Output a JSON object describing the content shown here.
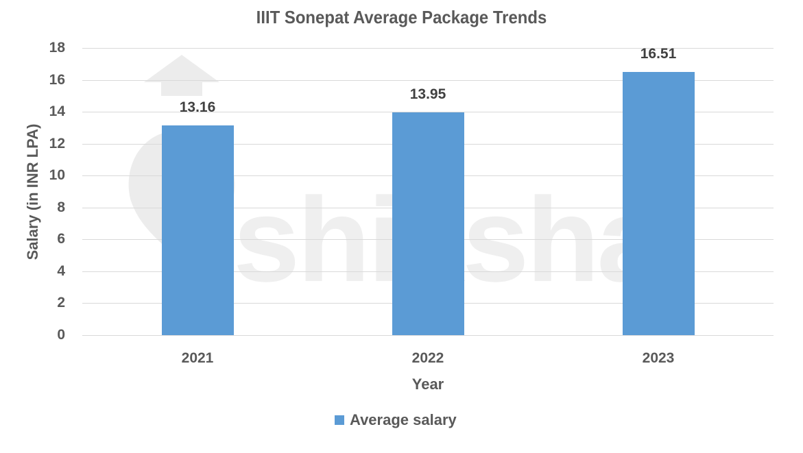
{
  "chart_data": {
    "type": "bar",
    "title": "IIIT Sonepat Average Package Trends",
    "xlabel": "Year",
    "ylabel": "Salary (in INR LPA)",
    "categories": [
      "2021",
      "2022",
      "2023"
    ],
    "series": [
      {
        "name": "Average salary",
        "values": [
          13.16,
          13.95,
          16.51
        ],
        "color": "#5b9bd5"
      }
    ],
    "value_labels": [
      "13.16",
      "13.95",
      "16.51"
    ],
    "ylim": [
      0,
      18
    ],
    "yticks": [
      "0",
      "2",
      "4",
      "6",
      "8",
      "10",
      "12",
      "14",
      "16",
      "18"
    ],
    "grid": true,
    "legend_position": "bottom"
  },
  "watermark": "shiksha"
}
